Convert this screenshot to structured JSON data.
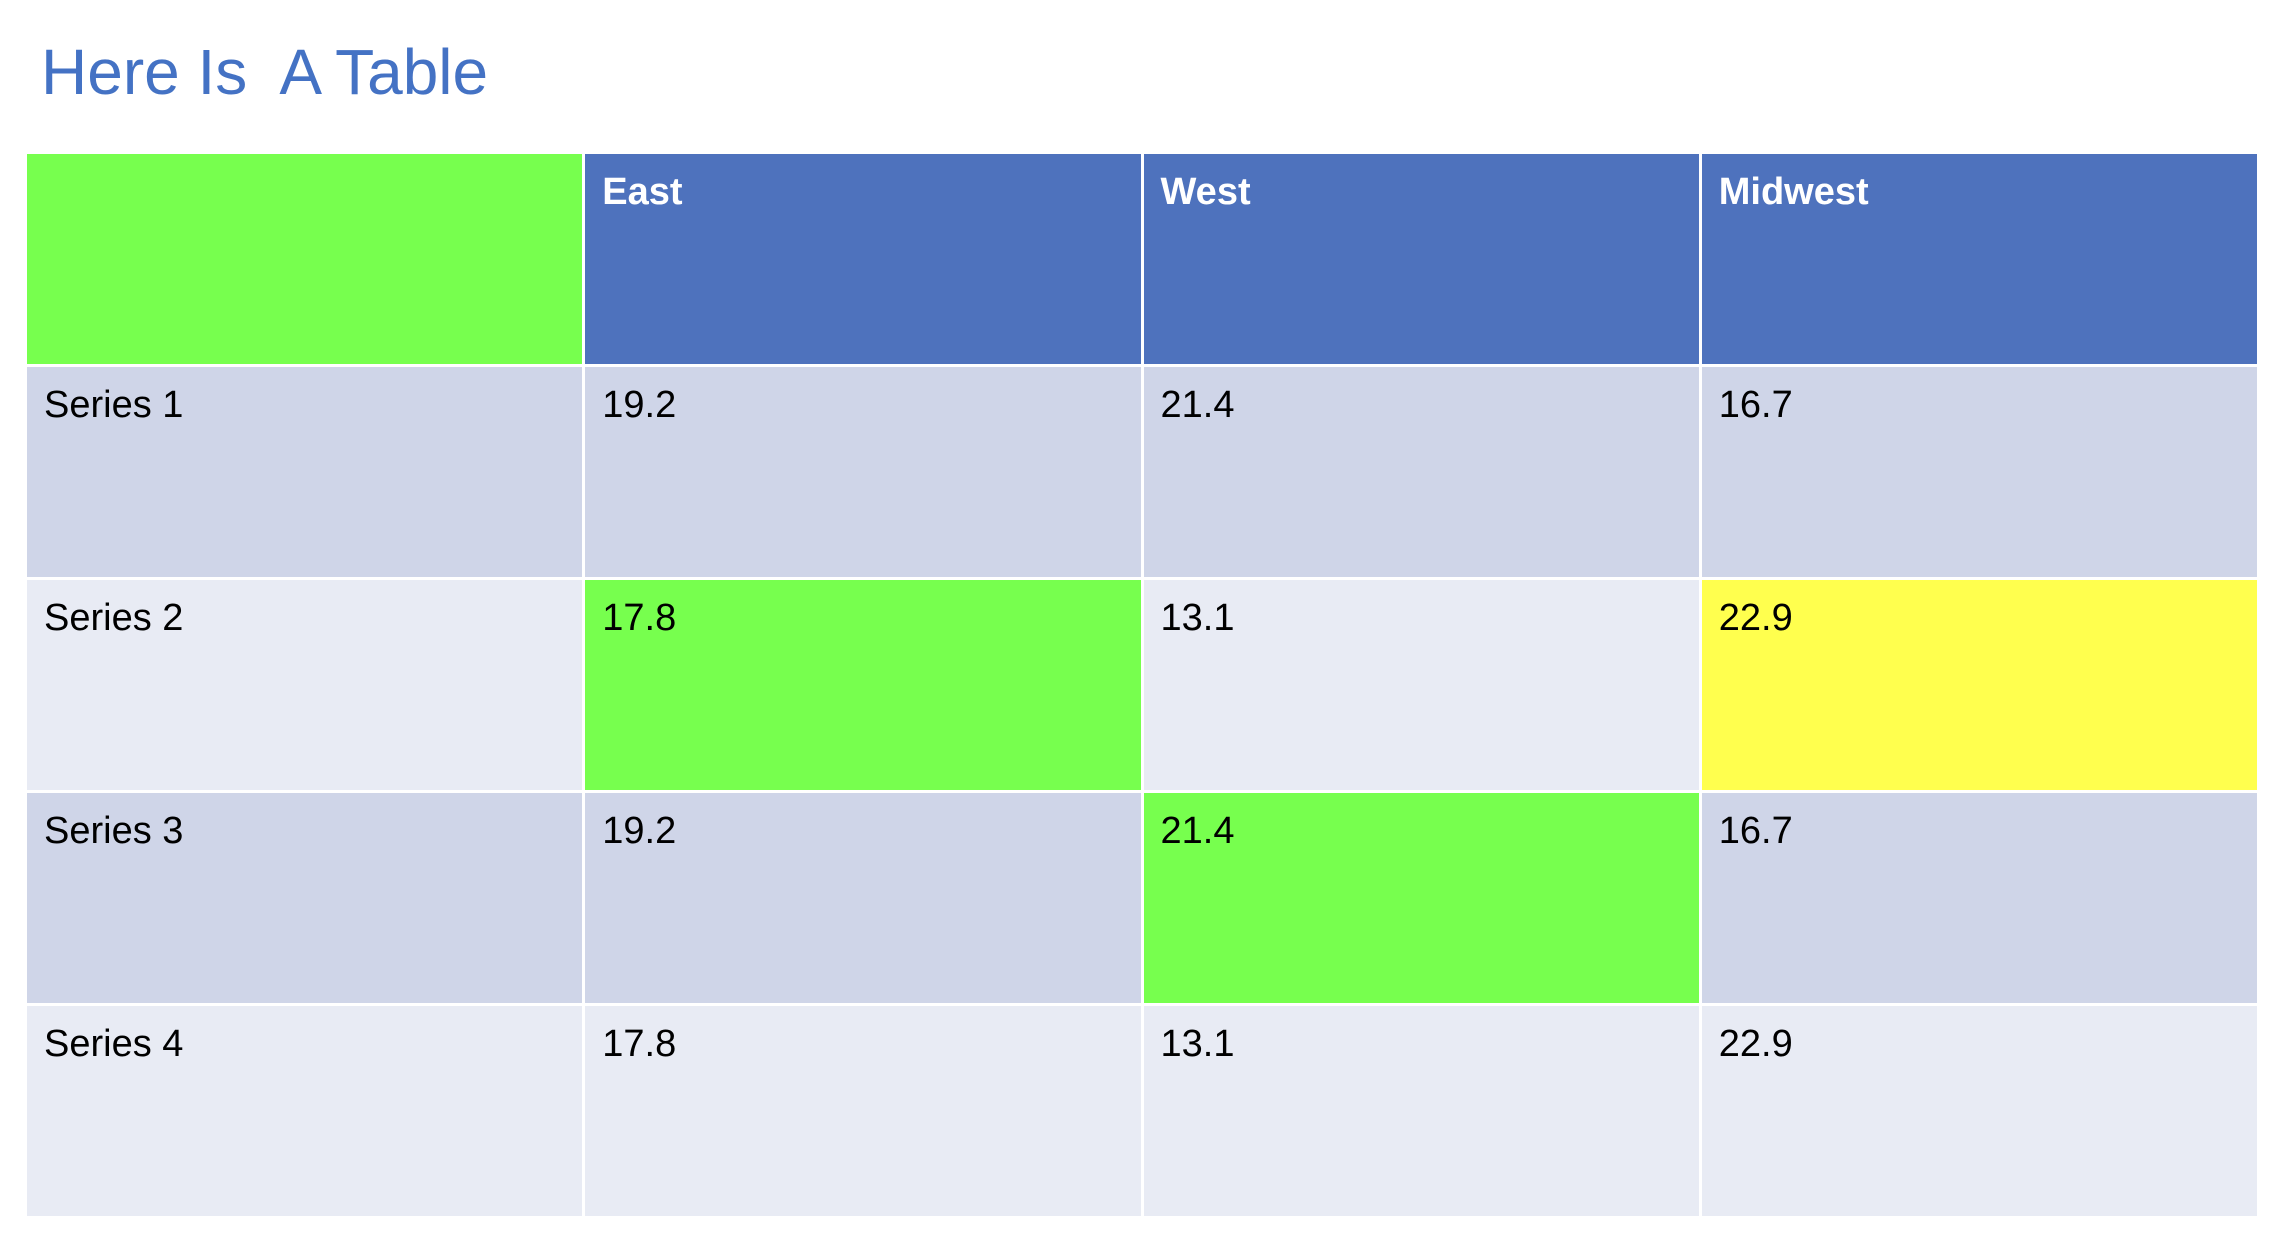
{
  "title": "Here Is  A Table",
  "colors": {
    "title": "#4472C4",
    "header_bg": "#4E72BD",
    "header_text": "#FFFFFF",
    "band_dark": "#CFD5E8",
    "band_light": "#E8EBF4",
    "highlight_green": "#77FF4E",
    "highlight_yellow": "#FFFF4E"
  },
  "table": {
    "columns": [
      "",
      "East",
      "West",
      "Midwest"
    ],
    "rows": [
      {
        "label": "Series 1",
        "values": [
          "19.2",
          "21.4",
          "16.7"
        ]
      },
      {
        "label": "Series 2",
        "values": [
          "17.8",
          "13.1",
          "22.9"
        ]
      },
      {
        "label": "Series 3",
        "values": [
          "19.2",
          "21.4",
          "16.7"
        ]
      },
      {
        "label": "Series 4",
        "values": [
          "17.8",
          "13.1",
          "22.9"
        ]
      }
    ],
    "highlighted_cells": [
      {
        "row": 1,
        "col": 0,
        "color": "green"
      },
      {
        "row": 1,
        "col": 2,
        "color": "yellow"
      },
      {
        "row": 2,
        "col": 1,
        "color": "green"
      }
    ],
    "header_corner_color": "green"
  }
}
